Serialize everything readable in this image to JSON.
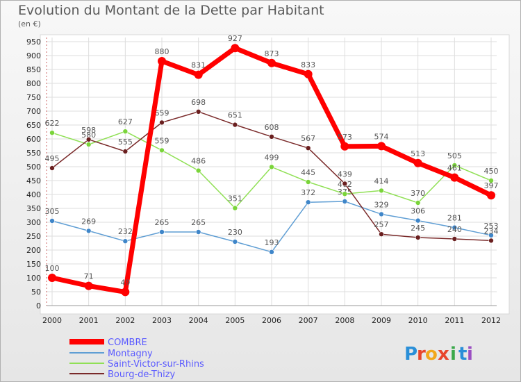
{
  "header": {
    "title": "Evolution du Montant de la Dette par Habitant",
    "unit": "(en €)"
  },
  "brand": {
    "letters": [
      "P",
      "r",
      "o",
      "x",
      "i",
      "t",
      "i"
    ],
    "colors": [
      "#2a8fd8",
      "#e8452c",
      "#f2a71b",
      "#e8452c",
      "#3aa84a",
      "#2a8fd8",
      "#9b4fc2"
    ]
  },
  "chart_data": {
    "type": "line",
    "title": "Evolution du Montant de la Dette par Habitant",
    "ylabel": "(en €)",
    "x": [
      "2000",
      "2001",
      "2002",
      "2003",
      "2004",
      "2005",
      "2006",
      "2007",
      "2008",
      "2009",
      "2010",
      "2011",
      "2012"
    ],
    "ylim": [
      0,
      950
    ],
    "yticks": [
      0,
      50,
      100,
      150,
      200,
      250,
      300,
      350,
      400,
      450,
      500,
      550,
      600,
      650,
      700,
      750,
      800,
      850,
      900,
      950
    ],
    "grid": true,
    "legend": "bottom-left",
    "series": [
      {
        "name": "COMBRE",
        "color": "#ff0000",
        "values": [
          100,
          71,
          49,
          880,
          831,
          927,
          873,
          833,
          573,
          574,
          513,
          461,
          397
        ]
      },
      {
        "name": "Montagny",
        "color": "#5f9ed4",
        "values": [
          305,
          269,
          232,
          265,
          265,
          230,
          193,
          372,
          375,
          329,
          306,
          281,
          253
        ]
      },
      {
        "name": "Saint-Victor-sur-Rhins",
        "color": "#90e055",
        "values": [
          622,
          580,
          627,
          559,
          486,
          351,
          499,
          445,
          402,
          414,
          370,
          505,
          450
        ]
      },
      {
        "name": "Bourg-de-Thizy",
        "color": "#7a2a2a",
        "values": [
          495,
          598,
          555,
          659,
          698,
          651,
          608,
          567,
          439,
          257,
          245,
          240,
          234
        ]
      }
    ]
  }
}
